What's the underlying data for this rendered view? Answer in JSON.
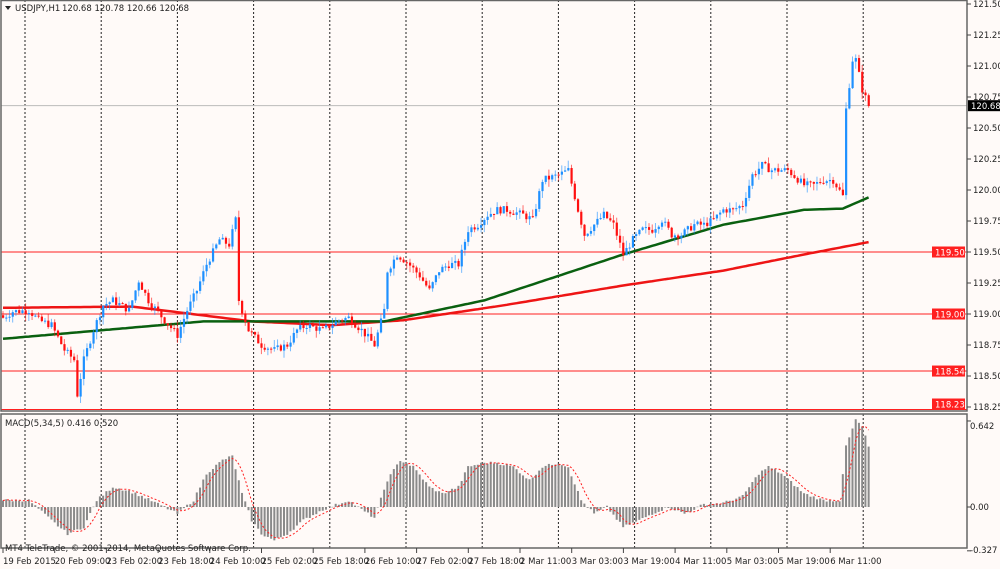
{
  "header": {
    "menu_icon": "triangle-down-icon",
    "symbol": "USDJPY,H1",
    "ohlc": "120.68 120.78 120.66 120.68"
  },
  "macd_label": "MACD(5,34,5) 0.416 0.520",
  "copyright": "MT4 TeleTrade, © 2001-2014, MetaQuotes Software Corp.",
  "colors": {
    "bull": "#1e90ff",
    "bear": "#ff1010",
    "ma_fast": "#0a6010",
    "ma_slow": "#ee1515",
    "level": "#ff2020",
    "histogram": "#8a8a8a",
    "signal": "#ff2020"
  },
  "chart_data": {
    "type": "candlestick",
    "title": "USDJPY,H1",
    "price_ticks": [
      "121.50",
      "121.25",
      "121.00",
      "120.75",
      "120.50",
      "120.25",
      "120.00",
      "119.75",
      "119.50",
      "119.25",
      "119.00",
      "118.75",
      "118.50",
      "118.25"
    ],
    "price_range": [
      118.22,
      121.52
    ],
    "current_price": "120.68",
    "levels": [
      "119.50",
      "119.00",
      "118.54",
      "118.23"
    ],
    "time_labels": [
      "19 Feb 2015",
      "20 Feb 09:00",
      "23 Feb 02:00",
      "23 Feb 18:00",
      "24 Feb 10:00",
      "25 Feb 02:00",
      "25 Feb 18:00",
      "26 Feb 10:00",
      "27 Feb 02:00",
      "27 Feb 18:00",
      "2 Mar 11:00",
      "3 Mar 03:00",
      "3 Mar 19:00",
      "4 Mar 11:00",
      "5 Mar 03:00",
      "5 Mar 19:00",
      "6 Mar 11:00"
    ],
    "bars_total": 269,
    "close_keypoints": [
      [
        0,
        118.97
      ],
      [
        3,
        119.02
      ],
      [
        8,
        119.03
      ],
      [
        11,
        118.95
      ],
      [
        15,
        118.91
      ],
      [
        19,
        118.71
      ],
      [
        22,
        118.63
      ],
      [
        23,
        118.35
      ],
      [
        25,
        118.63
      ],
      [
        28,
        118.87
      ],
      [
        31,
        119.07
      ],
      [
        34,
        119.11
      ],
      [
        39,
        119.03
      ],
      [
        42,
        119.27
      ],
      [
        45,
        119.11
      ],
      [
        50,
        118.95
      ],
      [
        54,
        118.83
      ],
      [
        57,
        119.03
      ],
      [
        60,
        119.19
      ],
      [
        63,
        119.4
      ],
      [
        67,
        119.6
      ],
      [
        70,
        119.56
      ],
      [
        72,
        119.76
      ],
      [
        73,
        119.11
      ],
      [
        76,
        118.87
      ],
      [
        80,
        118.75
      ],
      [
        84,
        118.71
      ],
      [
        88,
        118.75
      ],
      [
        91,
        118.87
      ],
      [
        94,
        118.91
      ],
      [
        99,
        118.87
      ],
      [
        104,
        118.95
      ],
      [
        107,
        118.97
      ],
      [
        111,
        118.87
      ],
      [
        115,
        118.75
      ],
      [
        118,
        119.03
      ],
      [
        119,
        119.35
      ],
      [
        122,
        119.48
      ],
      [
        125,
        119.42
      ],
      [
        129,
        119.31
      ],
      [
        132,
        119.19
      ],
      [
        135,
        119.35
      ],
      [
        138,
        119.4
      ],
      [
        141,
        119.4
      ],
      [
        144,
        119.68
      ],
      [
        147,
        119.72
      ],
      [
        150,
        119.8
      ],
      [
        153,
        119.84
      ],
      [
        156,
        119.84
      ],
      [
        161,
        119.8
      ],
      [
        164,
        119.76
      ],
      [
        167,
        120.08
      ],
      [
        172,
        120.12
      ],
      [
        175,
        120.16
      ],
      [
        178,
        119.84
      ],
      [
        180,
        119.64
      ],
      [
        183,
        119.72
      ],
      [
        186,
        119.8
      ],
      [
        189,
        119.72
      ],
      [
        192,
        119.48
      ],
      [
        195,
        119.6
      ],
      [
        198,
        119.68
      ],
      [
        201,
        119.68
      ],
      [
        204,
        119.76
      ],
      [
        207,
        119.64
      ],
      [
        210,
        119.64
      ],
      [
        214,
        119.72
      ],
      [
        217,
        119.72
      ],
      [
        220,
        119.76
      ],
      [
        223,
        119.84
      ],
      [
        226,
        119.84
      ],
      [
        229,
        119.88
      ],
      [
        232,
        120.12
      ],
      [
        235,
        120.2
      ],
      [
        238,
        120.16
      ],
      [
        243,
        120.16
      ],
      [
        248,
        120.04
      ],
      [
        251,
        120.04
      ],
      [
        254,
        120.08
      ],
      [
        257,
        120.08
      ],
      [
        260,
        119.95
      ],
      [
        261,
        120.65
      ],
      [
        263,
        121.05
      ],
      [
        264,
        121.05
      ],
      [
        266,
        120.81
      ],
      [
        268,
        120.68
      ]
    ],
    "ma_fast_keypoints": [
      [
        0,
        118.8
      ],
      [
        62,
        118.94
      ],
      [
        118,
        118.94
      ],
      [
        149,
        119.11
      ],
      [
        192,
        119.48
      ],
      [
        223,
        119.72
      ],
      [
        248,
        119.84
      ],
      [
        260,
        119.85
      ],
      [
        268,
        119.94
      ]
    ],
    "ma_slow_keypoints": [
      [
        0,
        119.05
      ],
      [
        40,
        119.06
      ],
      [
        77,
        118.94
      ],
      [
        102,
        118.91
      ],
      [
        124,
        118.95
      ],
      [
        155,
        119.07
      ],
      [
        192,
        119.23
      ],
      [
        223,
        119.35
      ],
      [
        248,
        119.48
      ],
      [
        268,
        119.58
      ]
    ],
    "macd": {
      "ticks": [
        "0.642",
        "0.00",
        "-0.327"
      ],
      "range": [
        -0.327,
        0.642
      ],
      "histogram_keypoints": [
        [
          0,
          0.05
        ],
        [
          8,
          0.05
        ],
        [
          15,
          -0.1
        ],
        [
          20,
          -0.2
        ],
        [
          25,
          -0.15
        ],
        [
          29,
          0.05
        ],
        [
          34,
          0.15
        ],
        [
          39,
          0.12
        ],
        [
          43,
          0.08
        ],
        [
          50,
          0.0
        ],
        [
          54,
          -0.05
        ],
        [
          59,
          0.05
        ],
        [
          63,
          0.25
        ],
        [
          68,
          0.35
        ],
        [
          71,
          0.38
        ],
        [
          74,
          0.1
        ],
        [
          77,
          -0.1
        ],
        [
          80,
          -0.2
        ],
        [
          84,
          -0.25
        ],
        [
          88,
          -0.2
        ],
        [
          93,
          -0.1
        ],
        [
          99,
          -0.02
        ],
        [
          107,
          0.05
        ],
        [
          111,
          -0.02
        ],
        [
          115,
          -0.08
        ],
        [
          119,
          0.2
        ],
        [
          123,
          0.35
        ],
        [
          127,
          0.3
        ],
        [
          132,
          0.15
        ],
        [
          136,
          0.1
        ],
        [
          141,
          0.15
        ],
        [
          144,
          0.3
        ],
        [
          149,
          0.33
        ],
        [
          153,
          0.33
        ],
        [
          158,
          0.3
        ],
        [
          163,
          0.2
        ],
        [
          167,
          0.3
        ],
        [
          172,
          0.33
        ],
        [
          175,
          0.3
        ],
        [
          179,
          0.05
        ],
        [
          183,
          -0.05
        ],
        [
          187,
          0.0
        ],
        [
          192,
          -0.15
        ],
        [
          197,
          -0.1
        ],
        [
          201,
          -0.05
        ],
        [
          206,
          0.0
        ],
        [
          211,
          -0.05
        ],
        [
          217,
          0.02
        ],
        [
          223,
          0.03
        ],
        [
          229,
          0.08
        ],
        [
          234,
          0.25
        ],
        [
          237,
          0.3
        ],
        [
          241,
          0.25
        ],
        [
          248,
          0.1
        ],
        [
          254,
          0.05
        ],
        [
          259,
          0.05
        ],
        [
          261,
          0.45
        ],
        [
          264,
          0.65
        ],
        [
          266,
          0.6
        ],
        [
          268,
          0.45
        ]
      ]
    }
  }
}
